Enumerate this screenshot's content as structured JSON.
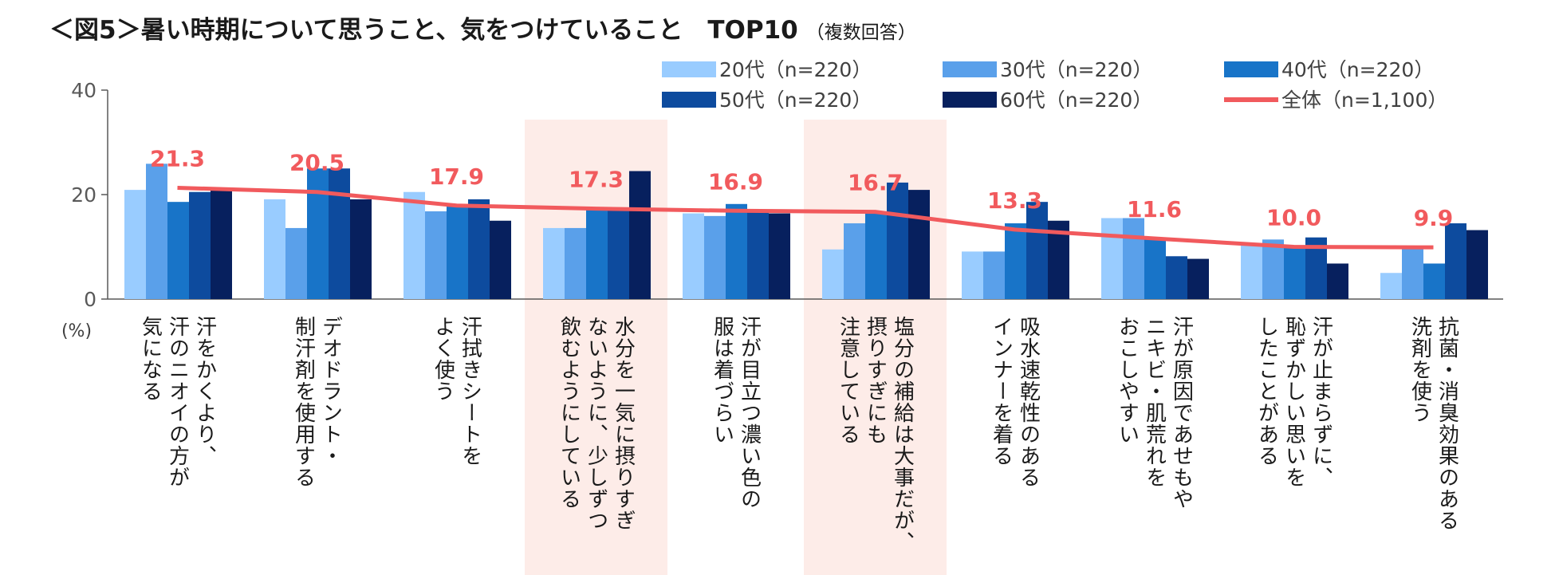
{
  "title": "＜図5＞暑い時期について思うこと、気をつけていること　TOP10",
  "title_note": "（複数回答）",
  "chart_data": {
    "type": "bar",
    "categories": [
      {
        "lines": [
          "汗をかくより、",
          "汗のニオイの方が",
          "気になる"
        ]
      },
      {
        "lines": [
          "デオドラント・",
          "制汗剤を使用する"
        ]
      },
      {
        "lines": [
          "汗拭きシートを",
          "よく使う"
        ]
      },
      {
        "lines": [
          "水分を一気に摂りすぎ",
          "ないように、少しずつ",
          "飲むようにしている"
        ],
        "highlight": true
      },
      {
        "lines": [
          "汗が目立つ濃い色の",
          "服は着づらい"
        ]
      },
      {
        "lines": [
          "塩分の補給は大事だが、",
          "摂りすぎにも",
          "注意している"
        ],
        "highlight": true
      },
      {
        "lines": [
          "吸水速乾性のある",
          "インナーを着る"
        ]
      },
      {
        "lines": [
          "汗が原因であせもや",
          "ニキビ・肌荒れを",
          "おこしやすい"
        ]
      },
      {
        "lines": [
          "汗が止まらずに、",
          "恥ずかしい思いを",
          "したことがある"
        ]
      },
      {
        "lines": [
          "抗菌・消臭効果のある",
          "洗剤を使う"
        ]
      }
    ],
    "series": [
      {
        "name": "20代（n=220）",
        "color": "#99ccff",
        "values": [
          20.9,
          19.1,
          20.5,
          13.6,
          16.4,
          9.5,
          9.1,
          15.5,
          10.5,
          5.0
        ]
      },
      {
        "name": "30代（n=220）",
        "color": "#5aa0ea",
        "values": [
          25.9,
          13.6,
          16.8,
          13.6,
          15.9,
          14.5,
          9.1,
          15.5,
          11.4,
          10.0
        ]
      },
      {
        "name": "40代（n=220）",
        "color": "#1874c8",
        "values": [
          18.6,
          25.0,
          17.7,
          17.3,
          18.2,
          16.4,
          14.5,
          11.4,
          10.0,
          6.8
        ]
      },
      {
        "name": "50代（n=220）",
        "color": "#0d4b9e",
        "values": [
          20.5,
          25.0,
          19.1,
          17.3,
          16.8,
          22.3,
          18.6,
          8.2,
          11.8,
          14.5
        ]
      },
      {
        "name": "60代（n=220）",
        "color": "#07205e",
        "values": [
          20.9,
          19.1,
          15.0,
          24.5,
          16.4,
          20.9,
          15.0,
          7.7,
          6.8,
          13.2
        ]
      }
    ],
    "line": {
      "name": "全体（n=1,100）",
      "color": "#f15a5d",
      "values": [
        21.3,
        20.5,
        17.9,
        17.3,
        16.9,
        16.7,
        13.3,
        11.6,
        10.0,
        9.9
      ],
      "labels": [
        "21.3",
        "20.5",
        "17.9",
        "17.3",
        "16.9",
        "16.7",
        "13.3",
        "11.6",
        "10.0",
        "9.9"
      ]
    },
    "yaxis": {
      "ticks": [
        "0",
        "20",
        "40"
      ],
      "min": 0,
      "max": 40,
      "unit": "(%)"
    },
    "highlight_color": "#fdece8"
  }
}
